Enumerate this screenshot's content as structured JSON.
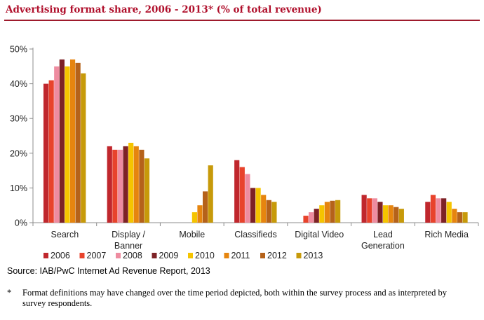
{
  "title": "Advertising format share, 2006 - 2013* (% of total revenue)",
  "source": "Source: IAB/PwC Internet Ad Revenue Report, 2013",
  "footnote": {
    "marker": "*",
    "text": "Format definitions may have changed over the time period depicted, both within the survey process and as interpreted by survey respondents."
  },
  "colors": {
    "title": "#b0102c",
    "rule": "#9e1a2c",
    "series": [
      "#c0272d",
      "#e8432c",
      "#ee8ca0",
      "#7d2226",
      "#f5c400",
      "#e6850f",
      "#b5621a",
      "#c79a0a"
    ]
  },
  "chart_data": {
    "type": "bar",
    "title": "Advertising format share, 2006 - 2013* (% of total revenue)",
    "xlabel": "",
    "ylabel": "",
    "ylim": [
      0,
      50
    ],
    "yticks": [
      "0%",
      "10%",
      "20%",
      "30%",
      "40%",
      "50%"
    ],
    "categories": [
      [
        "Search"
      ],
      [
        "Display /",
        "Banner"
      ],
      [
        "Mobile"
      ],
      [
        "Classifieds"
      ],
      [
        "Digital Video"
      ],
      [
        "Lead",
        "Generation"
      ],
      [
        "Rich Media"
      ]
    ],
    "legend_position": "bottom",
    "series": [
      {
        "name": "2006",
        "values": [
          40,
          22,
          0,
          18,
          0,
          8,
          6
        ]
      },
      {
        "name": "2007",
        "values": [
          41,
          21,
          0,
          16,
          2,
          7,
          8
        ]
      },
      {
        "name": "2008",
        "values": [
          45,
          21,
          0,
          14,
          3,
          7,
          7
        ]
      },
      {
        "name": "2009",
        "values": [
          47,
          22,
          0,
          10,
          4,
          6,
          7
        ]
      },
      {
        "name": "2010",
        "values": [
          45,
          23,
          3,
          10,
          5,
          5,
          6
        ]
      },
      {
        "name": "2011",
        "values": [
          47,
          22,
          5,
          8,
          6,
          5,
          4
        ]
      },
      {
        "name": "2012",
        "values": [
          46,
          21,
          9,
          6.5,
          6.3,
          4.5,
          3
        ]
      },
      {
        "name": "2013",
        "values": [
          43,
          18.5,
          16.5,
          6,
          6.5,
          4,
          3
        ]
      }
    ]
  }
}
